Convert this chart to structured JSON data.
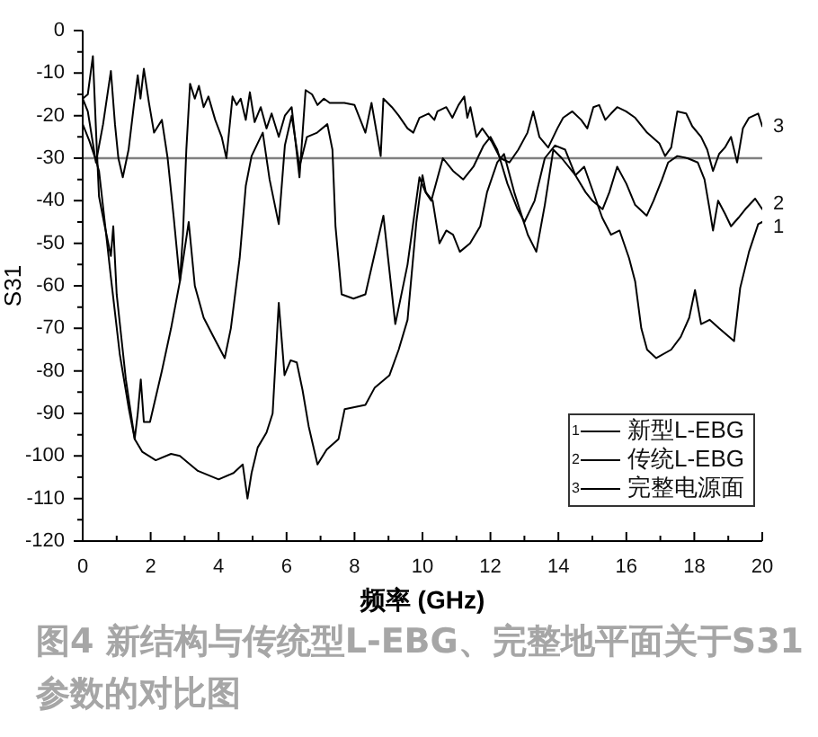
{
  "chart_data": {
    "type": "line",
    "xlabel": "频率 (GHz)",
    "ylabel": "S31",
    "xlim": [
      0,
      20
    ],
    "ylim": [
      -120,
      0
    ],
    "xticks": [
      0,
      {
        "value": 1,
        "label": null
      },
      2,
      {
        "value": 3,
        "label": null
      },
      4,
      {
        "value": 5,
        "label": null
      },
      6,
      {
        "value": 7,
        "label": null
      },
      8,
      {
        "value": 9,
        "label": null
      },
      10,
      {
        "value": 11,
        "label": null
      },
      12,
      {
        "value": 13,
        "label": null
      },
      14,
      {
        "value": 15,
        "label": null
      },
      16,
      {
        "value": 17,
        "label": null
      },
      18,
      {
        "value": 19,
        "label": null
      },
      20
    ],
    "yticks": [
      -120,
      {
        "value": -115,
        "label": null
      },
      -110,
      {
        "value": -105,
        "label": null
      },
      -100,
      {
        "value": -95,
        "label": null
      },
      -90,
      {
        "value": -85,
        "label": null
      },
      -80,
      {
        "value": -75,
        "label": null
      },
      -70,
      {
        "value": -65,
        "label": null
      },
      -60,
      {
        "value": -55,
        "label": null
      },
      -50,
      {
        "value": -45,
        "label": null
      },
      -40,
      {
        "value": -35,
        "label": null
      },
      -30,
      {
        "value": -25,
        "label": null
      },
      -20,
      {
        "value": -15,
        "label": null
      },
      -10,
      {
        "value": -5,
        "label": null
      },
      0
    ],
    "series": [
      {
        "name": "新型L-EBG",
        "color": "#000000",
        "x": [
          0,
          0.2,
          0.39,
          0.48,
          0.65,
          0.83,
          1.09,
          1.36,
          1.53,
          1.75,
          2.15,
          2.6,
          2.86,
          3.39,
          4.0,
          4.44,
          4.71,
          4.85,
          4.97,
          5.15,
          5.41,
          5.59,
          5.77,
          5.94,
          6.12,
          6.3,
          6.47,
          6.65,
          6.91,
          7.18,
          7.53,
          7.71,
          8.32,
          8.59,
          9.03,
          9.3,
          9.56,
          9.82,
          10.0,
          10.1,
          10.3,
          10.5,
          10.7,
          10.9,
          11.1,
          11.4,
          11.7,
          11.9,
          12.2,
          12.4,
          12.7,
          13.1,
          13.35,
          13.6,
          13.85,
          14.1,
          14.5,
          14.76,
          15.29,
          15.55,
          15.8,
          16.08,
          16.26,
          16.44,
          16.61,
          16.88,
          17.32,
          17.6,
          17.85,
          18.02,
          18.2,
          18.45,
          18.73,
          19.17,
          19.35,
          19.61,
          19.88,
          20
        ],
        "values": [
          -22,
          -26,
          -30.5,
          -33,
          -45,
          -58,
          -76,
          -89,
          -96,
          -99,
          -101,
          -99.5,
          -100,
          -103.5,
          -105.5,
          -104,
          -102,
          -110,
          -104,
          -98,
          -94.5,
          -90,
          -64,
          -81,
          -77.5,
          -78,
          -84.5,
          -93,
          -102,
          -98.5,
          -96,
          -89,
          -88,
          -84,
          -81,
          -75,
          -68,
          -45,
          -34,
          -38,
          -40,
          -50,
          -47,
          -48,
          -52,
          -50,
          -46,
          -38,
          -31,
          -29,
          -38,
          -48,
          -52,
          -41,
          -28,
          -30,
          -34,
          -32,
          -44,
          -48,
          -47,
          -53.5,
          -59,
          -70,
          -75,
          -77,
          -75,
          -72,
          -67.5,
          -61,
          -69,
          -68,
          -70,
          -73,
          -60.5,
          -52,
          -45.5,
          -45
        ]
      },
      {
        "name": "传统L-EBG",
        "color": "#000000",
        "x": [
          0,
          0.15,
          0.3,
          0.4,
          0.48,
          0.65,
          0.83,
          0.9,
          1.0,
          1.27,
          1.53,
          1.62,
          1.71,
          1.8,
          1.98,
          2.33,
          2.6,
          2.86,
          3.12,
          3.3,
          3.56,
          3.85,
          4.18,
          4.36,
          4.62,
          4.8,
          4.97,
          5.15,
          5.3,
          5.5,
          5.77,
          5.95,
          6.15,
          6.38,
          6.6,
          6.9,
          7.2,
          7.35,
          7.44,
          7.62,
          7.97,
          8.32,
          8.85,
          9.2,
          9.56,
          9.91,
          10.09,
          10.26,
          10.6,
          10.9,
          11.2,
          11.5,
          11.8,
          12.0,
          12.2,
          12.5,
          12.8,
          13.0,
          13.3,
          13.6,
          13.9,
          14.2,
          14.5,
          14.8,
          15.0,
          15.3,
          15.5,
          15.73,
          16.0,
          16.26,
          16.6,
          16.8,
          17.05,
          17.23,
          17.5,
          17.8,
          18.1,
          18.3,
          18.45,
          18.55,
          18.7,
          18.9,
          19.08,
          19.3,
          19.5,
          19.79,
          20
        ],
        "values": [
          -16,
          -15,
          -6,
          -25,
          -39,
          -46,
          -53,
          -46,
          -62,
          -82,
          -96,
          -90,
          -82,
          -92,
          -92,
          -80,
          -70,
          -59,
          -45,
          -60,
          -67.5,
          -72,
          -77,
          -70,
          -53.5,
          -36.5,
          -29.5,
          -26.5,
          -24,
          -35,
          -45.5,
          -27,
          -20,
          -32,
          -25,
          -24,
          -22,
          -28,
          -46,
          -62,
          -63,
          -62,
          -43.5,
          -69,
          -55,
          -34.5,
          -38,
          -40,
          -30,
          -33,
          -35,
          -32,
          -27,
          -25,
          -28,
          -36,
          -42,
          -45,
          -40,
          -30,
          -27,
          -28,
          -34,
          -38,
          -40,
          -42,
          -38,
          -32,
          -36,
          -41,
          -43.5,
          -40,
          -35,
          -31,
          -29.5,
          -30,
          -31,
          -35,
          -42,
          -47,
          -40,
          -43,
          -46,
          -44,
          -42,
          -39.5,
          -42
        ]
      },
      {
        "name": "完整电源面",
        "color": "#000000",
        "x": [
          0,
          0.15,
          0.39,
          0.6,
          0.83,
          0.95,
          1.05,
          1.18,
          1.35,
          1.5,
          1.62,
          1.7,
          1.8,
          1.95,
          2.1,
          2.33,
          2.5,
          2.68,
          2.86,
          2.95,
          3.05,
          3.16,
          3.3,
          3.42,
          3.56,
          3.7,
          3.9,
          4.09,
          4.23,
          4.41,
          4.53,
          4.65,
          4.8,
          4.92,
          5.06,
          5.24,
          5.41,
          5.56,
          5.77,
          5.95,
          6.15,
          6.38,
          6.56,
          6.75,
          6.91,
          7.1,
          7.27,
          7.44,
          7.7,
          8.0,
          8.32,
          8.5,
          8.77,
          8.85,
          9.1,
          9.3,
          9.56,
          9.73,
          9.91,
          10.18,
          10.35,
          10.44,
          10.7,
          10.88,
          11.06,
          11.23,
          11.32,
          11.41,
          11.59,
          11.76,
          12.03,
          12.29,
          12.56,
          12.82,
          13.09,
          13.26,
          13.44,
          13.7,
          13.97,
          14.14,
          14.41,
          14.67,
          14.85,
          15.03,
          15.2,
          15.38,
          15.55,
          15.73,
          15.99,
          16.26,
          16.61,
          16.97,
          17.14,
          17.32,
          17.5,
          17.76,
          17.94,
          18.2,
          18.38,
          18.55,
          18.73,
          18.9,
          19.08,
          19.26,
          19.43,
          19.61,
          19.88,
          20
        ],
        "values": [
          -16,
          -19,
          -31,
          -22,
          -9.5,
          -22,
          -30,
          -34.5,
          -28,
          -18,
          -10.5,
          -16,
          -9,
          -17,
          -24,
          -21,
          -30,
          -44,
          -59,
          -48,
          -28,
          -12.5,
          -16,
          -13,
          -18,
          -15.5,
          -21,
          -25,
          -30,
          -15.5,
          -17.5,
          -16,
          -21,
          -14.5,
          -21.5,
          -18,
          -23,
          -19.5,
          -25,
          -20,
          -18,
          -34.5,
          -14,
          -15,
          -17.5,
          -16,
          -17,
          -17,
          -17,
          -17.5,
          -24,
          -17,
          -29.5,
          -16,
          -18,
          -20,
          -23,
          -24,
          -20.5,
          -19.5,
          -21,
          -19,
          -18,
          -20.5,
          -17.5,
          -15.5,
          -20.5,
          -18,
          -25,
          -23,
          -26,
          -30,
          -31,
          -28,
          -24,
          -19,
          -25,
          -27.5,
          -23,
          -20.5,
          -19,
          -21,
          -23,
          -18,
          -17.5,
          -21,
          -19.5,
          -18,
          -19,
          -20.5,
          -24,
          -26.5,
          -29.5,
          -27.5,
          -19,
          -19.5,
          -22.5,
          -25,
          -28,
          -33,
          -29,
          -27.5,
          -25,
          -31,
          -23,
          -20.5,
          -19.5,
          -22.5
        ]
      }
    ],
    "ref_lines": [
      {
        "axis": "y",
        "value": -30,
        "color": "#808080"
      }
    ],
    "annotations": [
      "1",
      "2",
      "3",
      "图4 新结构与传统型L-EBG、完整地平面关于S31参数的对比图"
    ],
    "legend": "bottom right"
  }
}
